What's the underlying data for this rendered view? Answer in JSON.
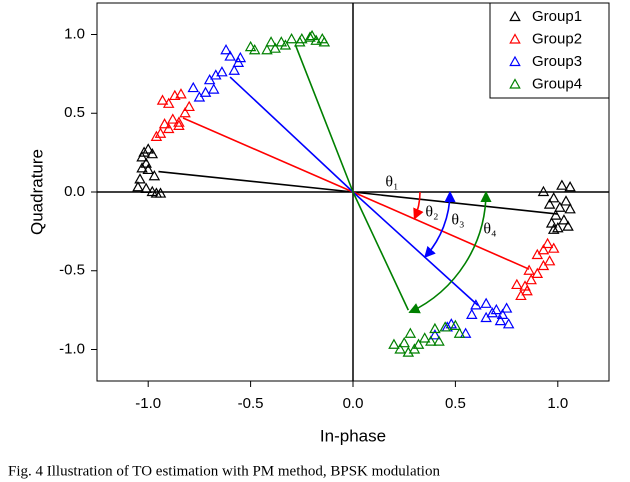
{
  "chart_data": {
    "type": "scatter",
    "xlabel": "In-phase",
    "ylabel": "Quadrature",
    "xlim": [
      -1.25,
      1.25
    ],
    "ylim": [
      -1.2,
      1.2
    ],
    "xticks": [
      {
        "value": -1,
        "label": "-1.0"
      },
      {
        "value": -0.5,
        "label": "-0.5"
      },
      {
        "value": 0,
        "label": "0.0"
      },
      {
        "value": 0.5,
        "label": "0.5"
      },
      {
        "value": 1,
        "label": "1.0"
      }
    ],
    "yticks": [
      {
        "value": -1,
        "label": "-1.0"
      },
      {
        "value": -0.5,
        "label": "-0.5"
      },
      {
        "value": 0,
        "label": "0.0"
      },
      {
        "value": 0.5,
        "label": "0.5"
      },
      {
        "value": 1,
        "label": "1.0"
      }
    ],
    "legend": "upper right",
    "series": [
      {
        "name": "Group1",
        "color": "#000000",
        "x": [
          -1.02,
          -1.0,
          -1.03,
          -0.98,
          -1.01,
          -1.0,
          -0.97,
          -1.04,
          -1.05,
          -1.01,
          -0.98,
          -0.96,
          -0.94,
          -1.03,
          0.93,
          1.02,
          1.06,
          0.98,
          1.04,
          0.96,
          1.01,
          1.06,
          0.99,
          1.03,
          0.97,
          1.05,
          1.0,
          0.98
        ],
        "y": [
          0.25,
          0.27,
          0.22,
          0.24,
          0.18,
          0.14,
          0.1,
          0.08,
          0.03,
          0.02,
          0.0,
          -0.01,
          -0.01,
          0.15,
          0.0,
          0.04,
          0.03,
          -0.04,
          -0.06,
          -0.08,
          -0.1,
          -0.11,
          -0.15,
          -0.18,
          -0.2,
          -0.22,
          -0.23,
          -0.24
        ],
        "vector_x": [
          -0.95,
          1.0
        ],
        "vector_y": [
          0.13,
          -0.14
        ]
      },
      {
        "name": "Group2",
        "color": "#ff0000",
        "x": [
          -0.96,
          -0.94,
          -0.9,
          -0.85,
          -0.88,
          -0.82,
          -0.8,
          -0.93,
          -0.9,
          -0.87,
          -0.84,
          -0.92,
          -0.85,
          0.95,
          0.98,
          0.93,
          0.9,
          0.96,
          0.93,
          0.9,
          0.86,
          0.87,
          0.84,
          0.85,
          0.8,
          0.82
        ],
        "y": [
          0.35,
          0.37,
          0.4,
          0.44,
          0.46,
          0.5,
          0.54,
          0.58,
          0.56,
          0.61,
          0.62,
          0.43,
          0.42,
          -0.33,
          -0.36,
          -0.37,
          -0.4,
          -0.44,
          -0.47,
          -0.52,
          -0.5,
          -0.56,
          -0.6,
          -0.63,
          -0.59,
          -0.66
        ],
        "vector_x": [
          -0.83,
          0.86
        ],
        "vector_y": [
          0.47,
          -0.49
        ]
      },
      {
        "name": "Group3",
        "color": "#0000ff",
        "x": [
          -0.75,
          -0.72,
          -0.7,
          -0.67,
          -0.64,
          -0.58,
          -0.56,
          -0.55,
          -0.6,
          -0.62,
          -0.68,
          -0.78,
          0.6,
          0.65,
          0.7,
          0.68,
          0.73,
          0.75,
          0.72,
          0.76,
          0.65,
          0.58,
          0.55,
          0.48,
          0.46,
          0.4
        ],
        "y": [
          0.6,
          0.63,
          0.71,
          0.74,
          0.76,
          0.77,
          0.82,
          0.85,
          0.86,
          0.9,
          0.65,
          0.66,
          -0.72,
          -0.71,
          -0.75,
          -0.77,
          -0.78,
          -0.74,
          -0.82,
          -0.84,
          -0.8,
          -0.78,
          -0.9,
          -0.84,
          -0.86,
          -0.91
        ],
        "vector_x": [
          -0.6,
          0.61
        ],
        "vector_y": [
          0.73,
          -0.72
        ]
      },
      {
        "name": "Group4",
        "color": "#008000",
        "x": [
          -0.5,
          -0.48,
          -0.42,
          -0.38,
          -0.4,
          -0.35,
          -0.3,
          -0.33,
          -0.26,
          -0.21,
          -0.18,
          -0.15,
          -0.14,
          -0.25,
          -0.2,
          0.2,
          0.23,
          0.25,
          0.27,
          0.3,
          0.28,
          0.35,
          0.38,
          0.4,
          0.45,
          0.5,
          0.52,
          0.42,
          0.32
        ],
        "y": [
          0.92,
          0.9,
          0.9,
          0.91,
          0.95,
          0.95,
          0.97,
          0.93,
          0.95,
          0.98,
          0.96,
          0.97,
          0.95,
          0.97,
          0.99,
          -0.97,
          -1.0,
          -0.96,
          -1.02,
          -1.0,
          -0.9,
          -0.93,
          -0.95,
          -0.87,
          -0.86,
          -0.85,
          -0.9,
          -0.95,
          -0.97
        ],
        "vector_x": [
          -0.28,
          0.27
        ],
        "vector_y": [
          0.93,
          -0.75
        ]
      }
    ],
    "annotations": [
      "θ₁",
      "θ₂",
      "θ₃",
      "θ₄"
    ]
  },
  "caption": "Fig. 4 Illustration of TO estimation with PM method, BPSK modulation"
}
